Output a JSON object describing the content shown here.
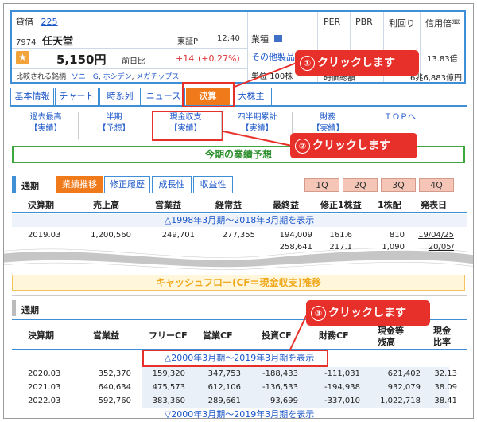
{
  "quote": {
    "credit_label": "貸借",
    "credit_num": "225",
    "code": "7974",
    "name": "任天堂",
    "market": "東証P",
    "time": "12:40",
    "price": "5,150円",
    "prev_label": "前日比",
    "change": "+14",
    "change_pct": "(+0.27%)",
    "compare_label": "比較される銘柄",
    "compare_1": "ソニーG",
    "compare_2": "ホシデン",
    "compare_3": "メガチップス",
    "industry_label": "業種",
    "industry_value": "その他製品",
    "unit_label": "単位",
    "unit_value": "100株",
    "per": "PER",
    "pbr": "PBR",
    "yield": "利回り",
    "margin": "信用倍率",
    "margin_value": "13.83倍",
    "mcap_label": "時価総額",
    "mcap_value": "6兆6,883億円"
  },
  "tabs": [
    "基本情報",
    "チャート",
    "時系列",
    "ニュース",
    "決算",
    "大株主"
  ],
  "subtabs": [
    {
      "l1": "過去最高",
      "l2": "【実績】"
    },
    {
      "l1": "半期",
      "l2": "【予想】"
    },
    {
      "l1": "現金収支",
      "l2": "【実績】"
    },
    {
      "l1": "四半期累計",
      "l2": "【実績】"
    },
    {
      "l1": "財務",
      "l2": "【実績】"
    },
    {
      "l1": "ＴＯＰへ",
      "l2": ""
    }
  ],
  "forecast_title": "今期の業績予想",
  "section1": {
    "label": "通期",
    "buttons": [
      "業績推移",
      "修正履歴",
      "成長性",
      "収益性"
    ],
    "quarters": [
      "1Q",
      "2Q",
      "3Q",
      "4Q"
    ],
    "headers": [
      "決算期",
      "売上高",
      "営業益",
      "経常益",
      "最終益",
      "修正1株益",
      "1株配",
      "発表日"
    ],
    "show_range": "△1998年3月期～2018年3月期を表示",
    "row": {
      "period": "2019.03",
      "sales": "1,200,560",
      "op": "249,701",
      "ord": "277,355",
      "net": "194,009",
      "eps": "161.6",
      "div": "810",
      "date": "19/04/25"
    },
    "row2": {
      "net": "258,641",
      "eps": "217.1",
      "div": "1,090",
      "date": "20/05/"
    }
  },
  "cf_title": "キャッシュフロー(CF＝現金収支)推移",
  "section2": {
    "label": "通期",
    "headers": [
      "決算期",
      "営業益",
      "フリーCF",
      "営業CF",
      "投資CF",
      "財務CF",
      "現金等",
      "残高",
      "現金",
      "比率"
    ],
    "show_range": "△2000年3月期～2019年3月期を表示",
    "show_range_bottom": "▽2000年3月期～2019年3月期を表示",
    "rows": [
      {
        "period": "2020.03",
        "op": "352,370",
        "fcf": "159,320",
        "ocf": "347,753",
        "icf": "-188,433",
        "fin": "-111,031",
        "cash": "621,402",
        "ratio": "32.13"
      },
      {
        "period": "2021.03",
        "op": "640,634",
        "fcf": "475,573",
        "ocf": "612,106",
        "icf": "-136,533",
        "fin": "-194,938",
        "cash": "932,079",
        "ratio": "38.09"
      },
      {
        "period": "2022.03",
        "op": "592,760",
        "fcf": "383,360",
        "ocf": "289,661",
        "icf": "93,699",
        "fin": "-337,010",
        "cash": "1,022,718",
        "ratio": "38.41"
      }
    ]
  },
  "callouts": [
    {
      "num": "①",
      "text": "クリックします"
    },
    {
      "num": "②",
      "text": "クリックします"
    },
    {
      "num": "③",
      "text": "クリックします"
    }
  ]
}
